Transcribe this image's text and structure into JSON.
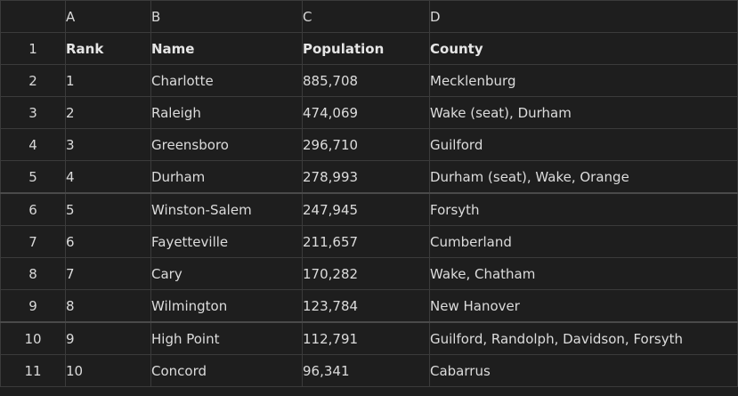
{
  "columns": [
    "A",
    "B",
    "C",
    "D"
  ],
  "rows": [
    {
      "num": "1",
      "cells": [
        "Rank",
        "Name",
        "Population",
        "County"
      ]
    },
    {
      "num": "2",
      "cells": [
        "1",
        "Charlotte",
        "885,708",
        "Mecklenburg"
      ]
    },
    {
      "num": "3",
      "cells": [
        "2",
        "Raleigh",
        "474,069",
        "Wake (seat), Durham"
      ]
    },
    {
      "num": "4",
      "cells": [
        "3",
        "Greensboro",
        "296,710",
        "Guilford"
      ]
    },
    {
      "num": "5",
      "cells": [
        "4",
        "Durham",
        "278,993",
        "Durham (seat), Wake, Orange"
      ]
    },
    {
      "num": "6",
      "cells": [
        "5",
        "Winston-Salem",
        "247,945",
        "Forsyth"
      ]
    },
    {
      "num": "7",
      "cells": [
        "6",
        "Fayetteville",
        "211,657",
        "Cumberland"
      ]
    },
    {
      "num": "8",
      "cells": [
        "7",
        "Cary",
        "170,282",
        "Wake, Chatham"
      ]
    },
    {
      "num": "9",
      "cells": [
        "8",
        "Wilmington",
        "123,784",
        "New Hanover"
      ]
    },
    {
      "num": "10",
      "cells": [
        "9",
        "High Point",
        "112,791",
        "Guilford, Randolph, Davidson, Forsyth"
      ]
    },
    {
      "num": "11",
      "cells": [
        "10",
        "Concord",
        "96,341",
        "Cabarrus"
      ]
    }
  ]
}
